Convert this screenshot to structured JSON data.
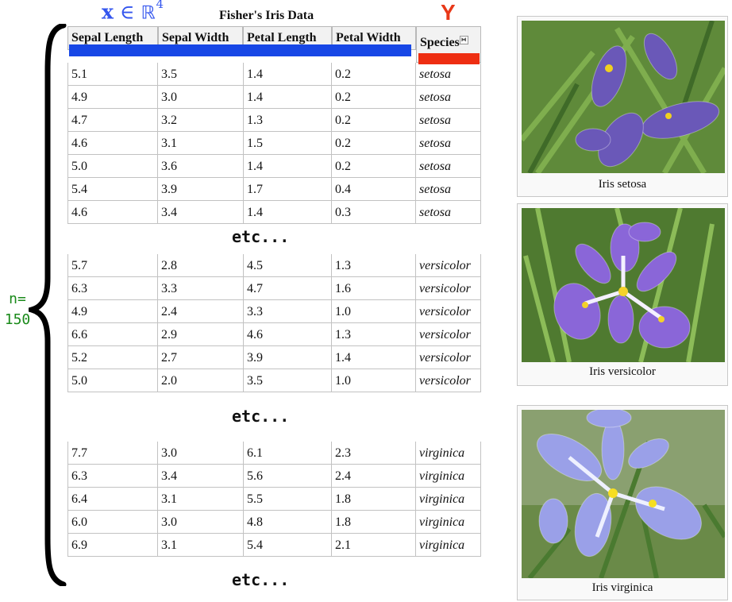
{
  "annotations": {
    "x_symbol": "x",
    "x_in": "∈",
    "x_space": "ℝ",
    "x_power": "4",
    "y_symbol": "Y",
    "n_line1": "n=",
    "n_line2": "150",
    "etc_label": "etc..."
  },
  "table": {
    "title": "Fisher's Iris Data",
    "headers": [
      "Sepal Length",
      "Sepal Width",
      "Petal Length",
      "Petal Width",
      "Species"
    ],
    "groups": [
      {
        "rows": [
          [
            "5.1",
            "3.5",
            "1.4",
            "0.2",
            "setosa"
          ],
          [
            "4.9",
            "3.0",
            "1.4",
            "0.2",
            "setosa"
          ],
          [
            "4.7",
            "3.2",
            "1.3",
            "0.2",
            "setosa"
          ],
          [
            "4.6",
            "3.1",
            "1.5",
            "0.2",
            "setosa"
          ],
          [
            "5.0",
            "3.6",
            "1.4",
            "0.2",
            "setosa"
          ],
          [
            "5.4",
            "3.9",
            "1.7",
            "0.4",
            "setosa"
          ],
          [
            "4.6",
            "3.4",
            "1.4",
            "0.3",
            "setosa"
          ]
        ]
      },
      {
        "rows": [
          [
            "5.7",
            "2.8",
            "4.5",
            "1.3",
            "versicolor"
          ],
          [
            "6.3",
            "3.3",
            "4.7",
            "1.6",
            "versicolor"
          ],
          [
            "4.9",
            "2.4",
            "3.3",
            "1.0",
            "versicolor"
          ],
          [
            "6.6",
            "2.9",
            "4.6",
            "1.3",
            "versicolor"
          ],
          [
            "5.2",
            "2.7",
            "3.9",
            "1.4",
            "versicolor"
          ],
          [
            "5.0",
            "2.0",
            "3.5",
            "1.0",
            "versicolor"
          ]
        ]
      },
      {
        "rows": [
          [
            "7.7",
            "3.0",
            "6.1",
            "2.3",
            "virginica"
          ],
          [
            "6.3",
            "3.4",
            "5.6",
            "2.4",
            "virginica"
          ],
          [
            "6.4",
            "3.1",
            "5.5",
            "1.8",
            "virginica"
          ],
          [
            "6.0",
            "3.0",
            "4.8",
            "1.8",
            "virginica"
          ],
          [
            "6.9",
            "3.1",
            "5.4",
            "2.1",
            "virginica"
          ]
        ]
      }
    ]
  },
  "photos": [
    {
      "caption": "Iris setosa",
      "petal_color": "#6a58b8",
      "center_color": "#f0d020"
    },
    {
      "caption": "Iris versicolor",
      "petal_color": "#8a66d8",
      "center_color": "#f4d22a"
    },
    {
      "caption": "Iris virginica",
      "petal_color": "#9aa0e8",
      "center_color": "#f6de22"
    }
  ],
  "colors": {
    "x_annotation": "#3355ee",
    "y_annotation": "#e83818",
    "n_annotation": "#1a8a1a",
    "feature_bar": "#1747e6",
    "label_bar": "#ee2e12"
  }
}
